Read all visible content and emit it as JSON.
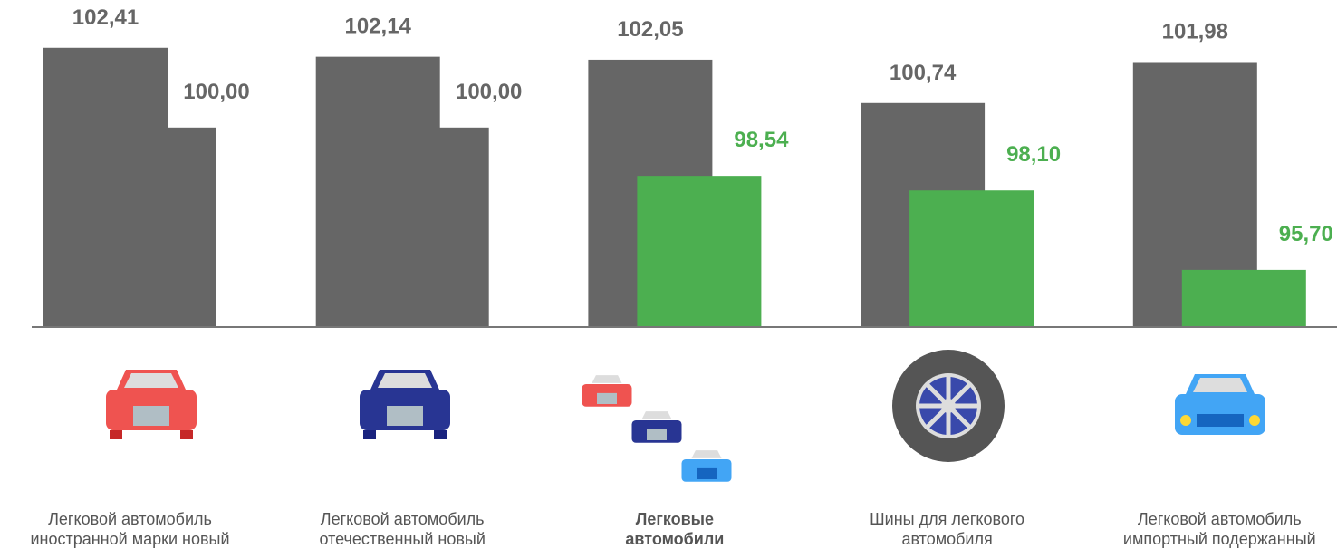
{
  "chart_data": {
    "type": "bar",
    "categories": [
      "Легковой автомобиль\nиностранной марки новый",
      "Легковой автомобиль\nотечественный новый",
      "Легковые\nавтомобили",
      "Шины для легкового\nавтомобиля",
      "Легковой автомобиль\nимпортный подержанный"
    ],
    "series": [
      {
        "color": "#666666",
        "values": [
          102.41,
          102.14,
          102.05,
          100.74,
          101.98
        ],
        "value_labels": [
          "102,41",
          "102,14",
          "102,05",
          "100,74",
          "101,98"
        ]
      },
      {
        "colors": [
          "#666666",
          "#666666",
          "#4caf50",
          "#4caf50",
          "#4caf50"
        ],
        "values": [
          100.0,
          100.0,
          98.54,
          98.1,
          95.7
        ],
        "value_labels": [
          "100,00",
          "100,00",
          "98,54",
          "98,10",
          "95,70"
        ]
      }
    ],
    "ylim": [
      94,
      103.8
    ]
  }
}
